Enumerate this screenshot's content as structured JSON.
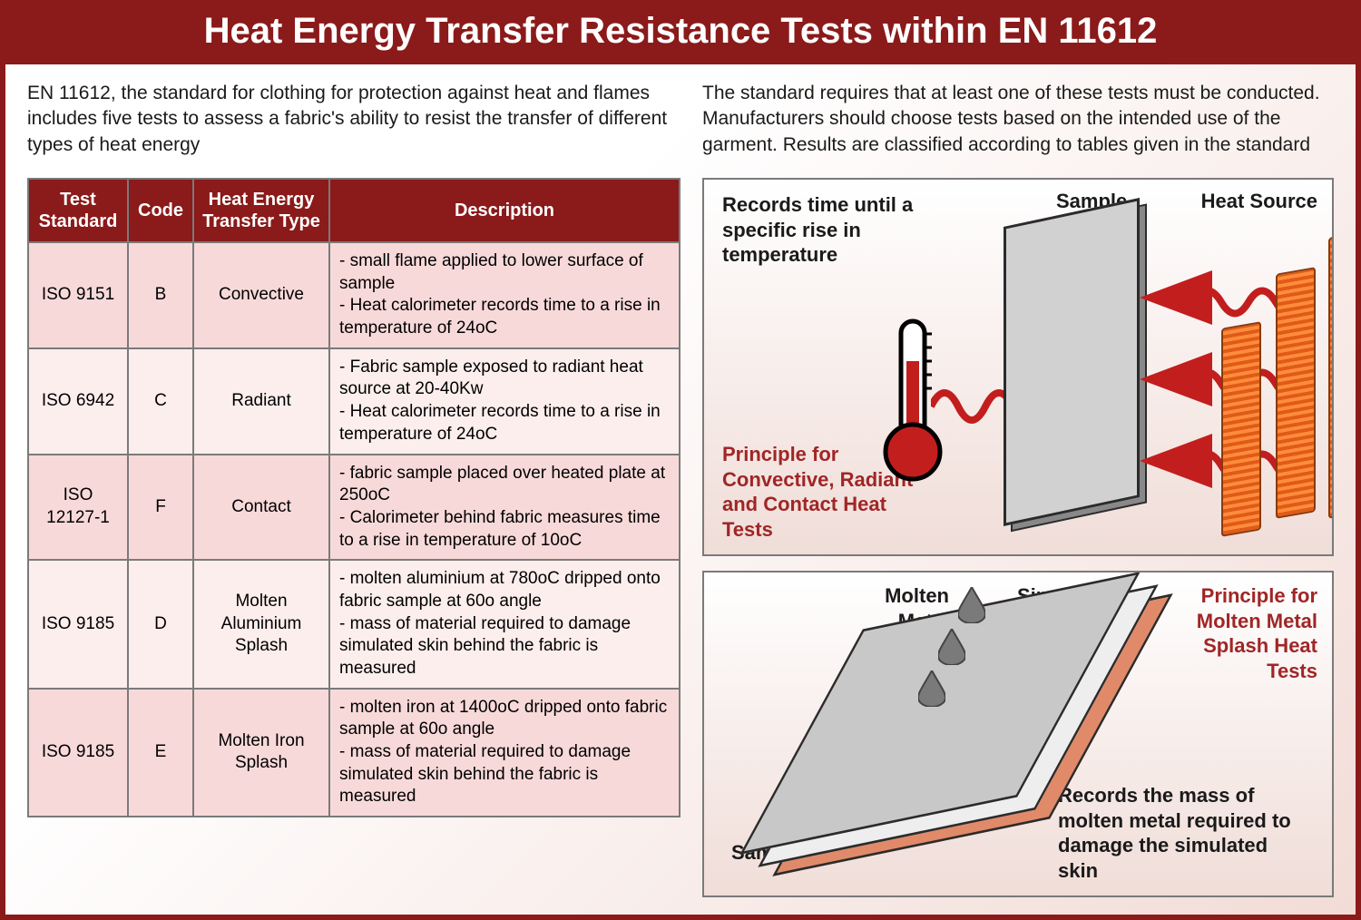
{
  "title": "Heat Energy Transfer Resistance Tests within EN 11612",
  "intro_left": "EN 11612, the standard for clothing for protection against heat and flames includes five tests to assess a fabric's ability to resist the transfer of different types of heat energy",
  "intro_right": "The standard requires that at least one of these tests must be conducted. Manufacturers should choose tests based on the intended use of the garment. Results are classified according to tables given in the standard",
  "table": {
    "headers": {
      "std": "Test Standard",
      "code": "Code",
      "type": "Heat Energy Transfer Type",
      "desc": "Description"
    },
    "rows": [
      {
        "std": "ISO 9151",
        "code": "B",
        "type": "Convective",
        "desc": "- small flame applied to lower surface of sample\n- Heat calorimeter records time to a rise in temperature of 24oC"
      },
      {
        "std": "ISO 6942",
        "code": "C",
        "type": "Radiant",
        "desc": "- Fabric sample exposed to radiant heat source at 20-40Kw\n- Heat calorimeter records time to a rise in temperature of 24oC"
      },
      {
        "std": "ISO 12127-1",
        "code": "F",
        "type": "Contact",
        "desc": "- fabric sample placed over heated plate at 250oC\n- Calorimeter behind fabric measures time to a rise in temperature of 10oC"
      },
      {
        "std": "ISO 9185",
        "code": "D",
        "type": "Molten Aluminium Splash",
        "desc": "- molten aluminium at 780oC dripped onto fabric sample at 60o angle\n- mass of material required to damage simulated skin behind the fabric is measured"
      },
      {
        "std": "ISO 9185",
        "code": "E",
        "type": "Molten Iron Splash",
        "desc": "- molten iron at 1400oC dripped onto fabric sample at 60o angle\n- mass of material required to damage simulated skin behind the fabric is measured"
      }
    ]
  },
  "diagram1": {
    "temp_label": "Records time until a specific rise in temperature",
    "sample_label": "Sample",
    "heat_source_label": "Heat Source",
    "principle_label": "Principle for Convective, Radiant and Contact Heat Tests",
    "thermo_fill": "#c21e1e",
    "heater_color": "#ff8c3a",
    "wave_color": "#c21e1e",
    "sample_fill": "#d1d1d1"
  },
  "diagram2": {
    "molten_label": "Molten Metal",
    "skin_label": "Simulated Skin",
    "sample_label": "Sample",
    "record_label": "Records the mass of molten metal required to damage the simulated skin",
    "principle_label": "Principle for Molten Metal Splash Heat Tests",
    "skin_color": "#e08a6a",
    "sample_color": "#c8c8c8",
    "drop_color": "#7a7a7a"
  },
  "colors": {
    "brand": "#8b1a1a",
    "border": "#7a7a7a",
    "row_dark": "#f8d9d9",
    "row_light": "#fceeed"
  }
}
